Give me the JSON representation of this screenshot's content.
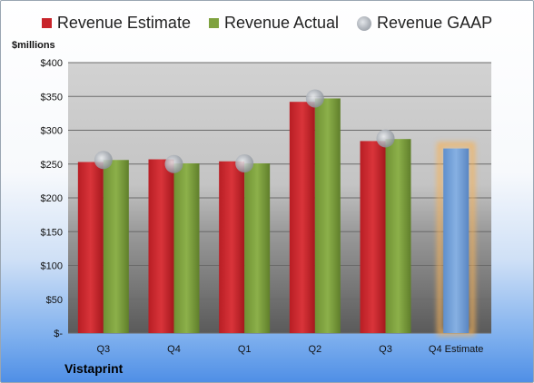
{
  "legend": {
    "estimate": "Revenue Estimate",
    "actual": "Revenue Actual",
    "gaap": "Revenue GAAP"
  },
  "unit_label": "$millions",
  "company": "Vistaprint",
  "colors": {
    "estimate": "#c8242a",
    "actual": "#7fa23f",
    "gaap": "#9aa0a8",
    "forecast": "#6f9fd8",
    "forecast_glow": "#f5b25a"
  },
  "chart_data": {
    "type": "bar",
    "categories": [
      "Q3",
      "Q4",
      "Q1",
      "Q2",
      "Q3",
      "Q4 Estimate"
    ],
    "series": [
      {
        "name": "Revenue Estimate",
        "values": [
          253,
          257,
          254,
          342,
          284,
          null
        ]
      },
      {
        "name": "Revenue Actual",
        "values": [
          256,
          251,
          251,
          347,
          287,
          273
        ]
      },
      {
        "name": "Revenue GAAP",
        "values": [
          256,
          250,
          251,
          347,
          288,
          null
        ]
      }
    ],
    "y_ticks": [
      "$-",
      "$50",
      "$100",
      "$150",
      "$200",
      "$250",
      "$300",
      "$350",
      "$400"
    ],
    "ylim": [
      0,
      400
    ],
    "ylabel": "$millions",
    "grid": true,
    "legend": "top"
  }
}
